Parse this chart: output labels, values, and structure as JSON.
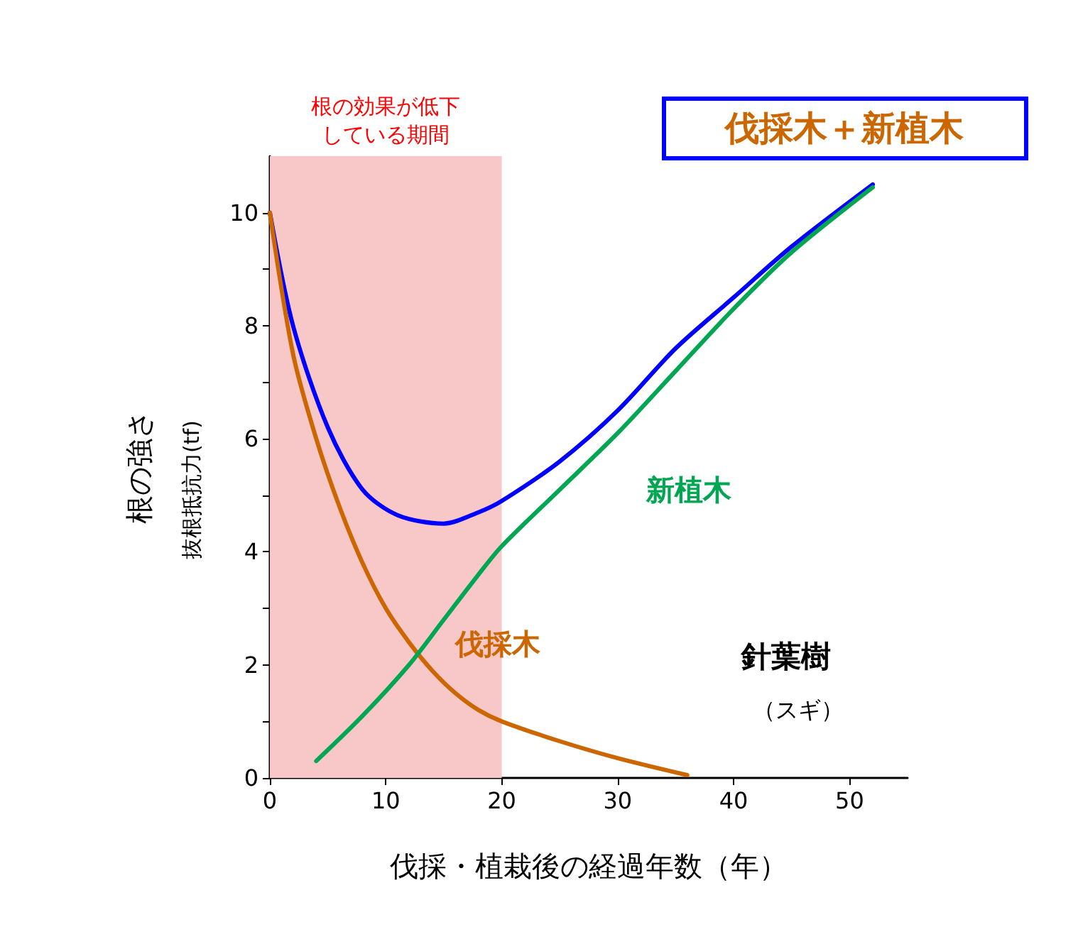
{
  "chart_data": {
    "type": "line",
    "xlabel": "伐採・植栽後の経過年数（年）",
    "ylabel": "根の強さ",
    "xlim": [
      0,
      55
    ],
    "xticks": [
      0,
      10,
      20,
      30,
      40,
      50
    ],
    "ylim": [
      0,
      11
    ],
    "yticks": [
      0,
      {
        "value": 1,
        "label": null
      },
      2,
      {
        "value": 3,
        "label": null
      },
      4,
      {
        "value": 5,
        "label": null
      },
      6,
      {
        "value": 7,
        "label": null
      },
      8,
      {
        "value": 9,
        "label": null
      },
      10
    ],
    "grid": false,
    "marker": "none",
    "line_style": "solid",
    "legend": "top right",
    "series": [
      {
        "name": "伐採木＋新植木",
        "color": "#0000ff",
        "x": [
          0,
          2,
          5,
          8,
          11,
          15,
          18,
          20,
          25,
          30,
          35,
          40,
          45,
          52
        ],
        "values": [
          10,
          8,
          6.2,
          5.1,
          4.65,
          4.5,
          4.7,
          4.9,
          5.6,
          6.5,
          7.6,
          8.5,
          9.4,
          10.5
        ]
      },
      {
        "name": "伐採木",
        "color": "#cc6600",
        "x": [
          0,
          2,
          4,
          6,
          8,
          10,
          12,
          14,
          16,
          18,
          20,
          25,
          30,
          36
        ],
        "values": [
          10,
          7.5,
          6,
          4.8,
          3.8,
          3,
          2.4,
          1.9,
          1.5,
          1.2,
          1,
          0.65,
          0.35,
          0.05
        ]
      },
      {
        "name": "新植木",
        "color": "#00a651",
        "x": [
          4,
          8,
          12,
          15,
          18,
          20,
          25,
          30,
          35,
          40,
          45,
          52
        ],
        "values": [
          0.3,
          1.1,
          2,
          2.8,
          3.6,
          4.1,
          5.1,
          6.1,
          7.2,
          8.3,
          9.3,
          10.45
        ]
      }
    ],
    "bands": [
      {
        "axis": "x",
        "from": 0,
        "to": 20,
        "label": "根の効果が低下している期間",
        "color": "#f8c8c8"
      }
    ],
    "annotations": [
      "抜根抵抗力(tf)",
      "針葉樹",
      "（スギ）"
    ]
  }
}
